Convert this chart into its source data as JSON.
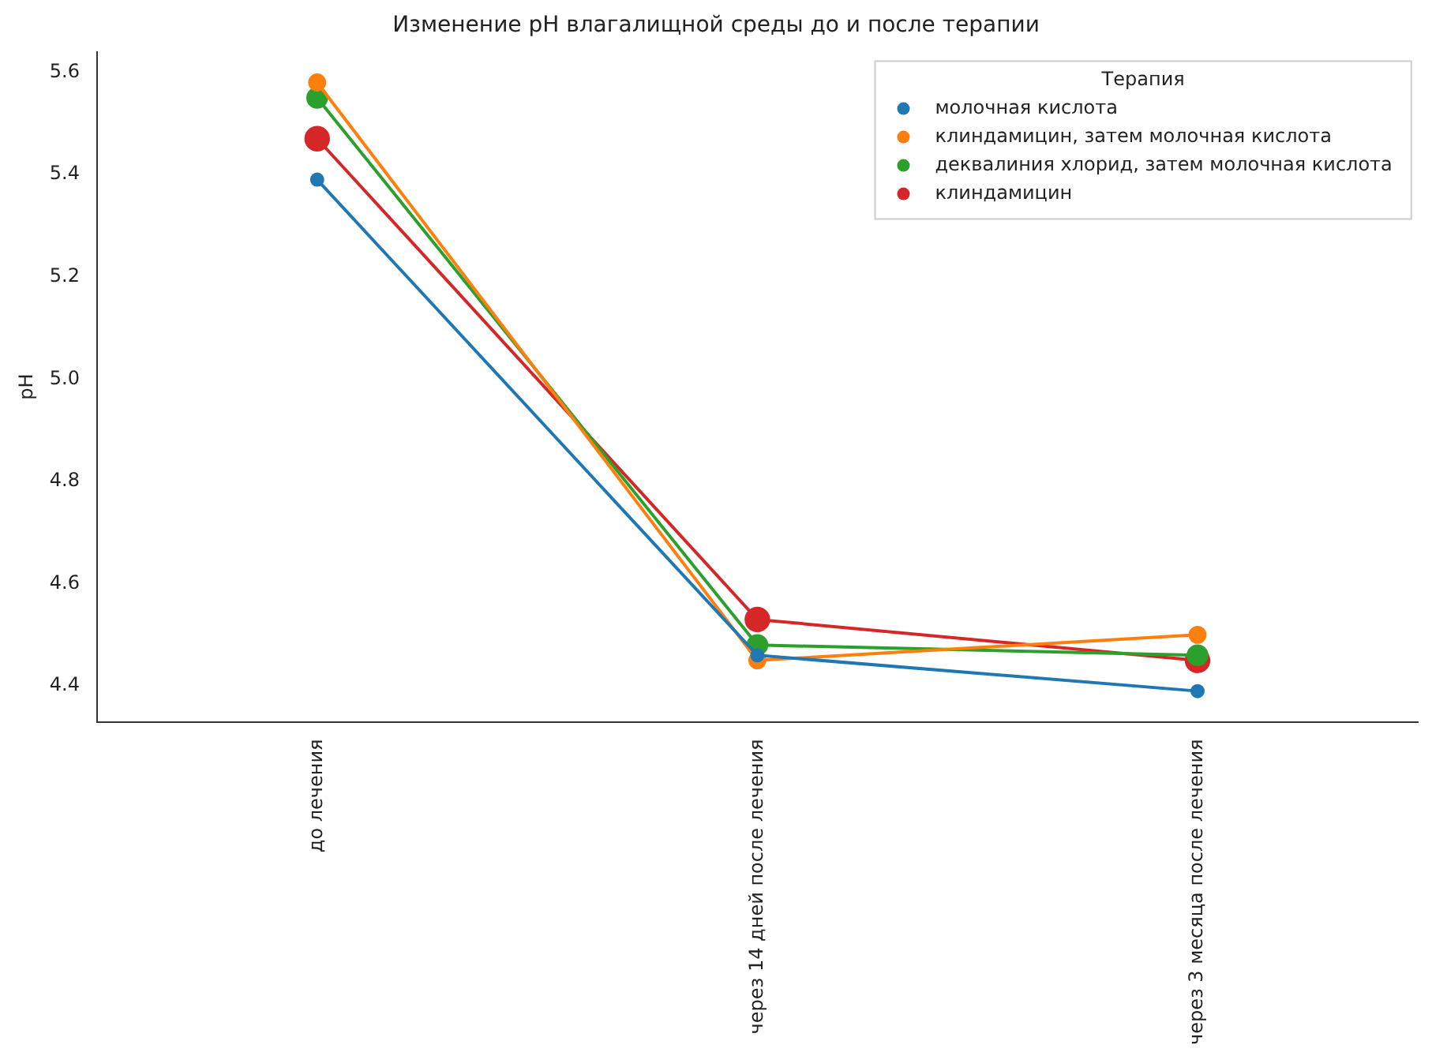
{
  "chart_data": {
    "type": "line",
    "title": "Изменение pH влагалищной среды до и после терапии",
    "ylabel": "pH",
    "legend_title": "Терапия",
    "categories": [
      "до лечения",
      "через 14 дней после лечения",
      "через 3 месяца после лечения"
    ],
    "series": [
      {
        "name": "молочная кислота",
        "color": "#1f77b4",
        "values": [
          5.39,
          4.46,
          4.39
        ]
      },
      {
        "name": "клиндамицин, затем молочная кислота",
        "color": "#ff7f0e",
        "values": [
          5.58,
          4.45,
          4.5
        ]
      },
      {
        "name": "деквалиния хлорид, затем молочная кислота",
        "color": "#2ca02c",
        "values": [
          5.55,
          4.48,
          4.46
        ]
      },
      {
        "name": "клиндамицин",
        "color": "#d62728",
        "values": [
          5.47,
          4.53,
          4.45
        ]
      }
    ],
    "ylim": [
      4.33,
      5.64
    ],
    "yticks": [
      {
        "value": 4.4,
        "label": "4.4"
      },
      {
        "value": 4.6,
        "label": "4.6"
      },
      {
        "value": 4.8,
        "label": "4.8"
      },
      {
        "value": 5,
        "label": "5.0"
      },
      {
        "value": 5.2,
        "label": "5.2"
      },
      {
        "value": 5.4,
        "label": "5.4"
      },
      {
        "value": 5.6,
        "label": "5.6"
      }
    ],
    "grid": false,
    "legend": "top right",
    "marker": "circle",
    "line_style": "solid"
  }
}
